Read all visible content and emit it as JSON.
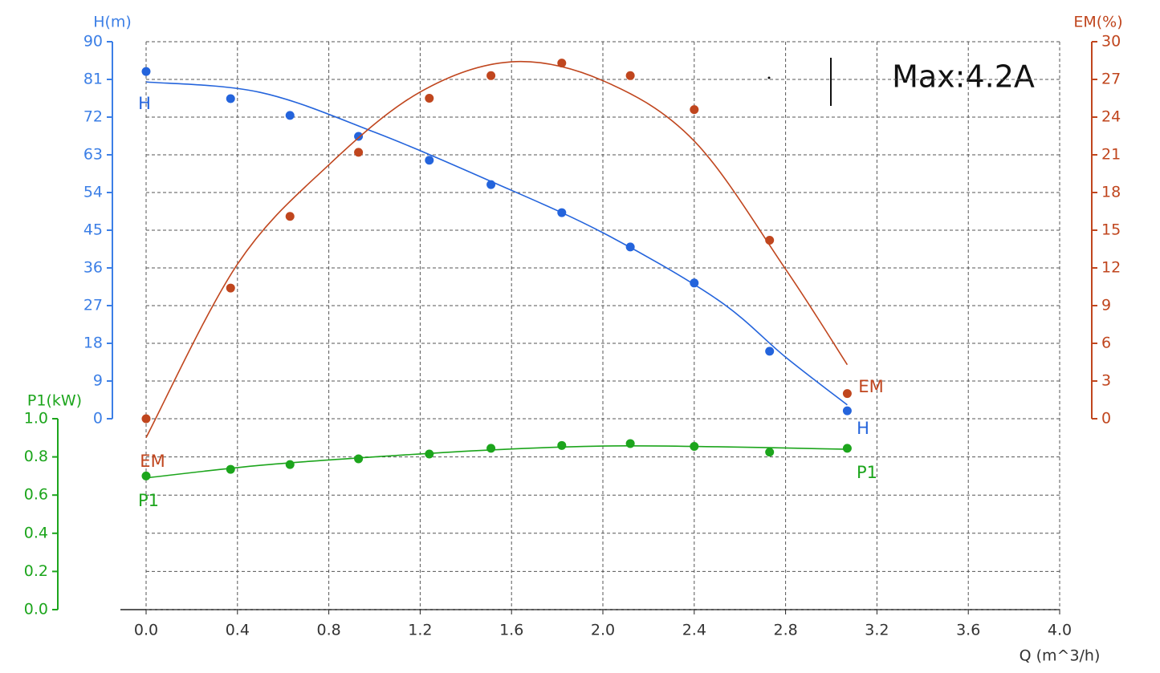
{
  "chart_data": {
    "type": "line",
    "annotation": "Max:4.2A",
    "x_label": "Q (m^3/h)",
    "y_label": "H(m)",
    "y2_label": "EM(%)",
    "y3_label": "P1(kW)",
    "grid": true,
    "xlim": [
      0,
      4.0
    ],
    "xticks": [
      {
        "value": 0,
        "label": "0.0"
      },
      0.4,
      0.8,
      1.2,
      1.6,
      {
        "value": 2,
        "label": "2.0"
      },
      2.4,
      2.8,
      3.2,
      3.6,
      {
        "value": 4,
        "label": "4.0"
      }
    ],
    "ylim": [
      0,
      90
    ],
    "yticks": [
      0,
      9,
      18,
      27,
      36,
      45,
      54,
      63,
      72,
      81,
      90
    ],
    "y2lim": [
      0,
      30
    ],
    "y2ticks": [
      0,
      3,
      6,
      9,
      12,
      15,
      18,
      21,
      24,
      27,
      30
    ],
    "y3lim": [
      0,
      1.0
    ],
    "y3ticks": [
      {
        "value": 0,
        "label": "0.0"
      },
      0.2,
      0.4,
      0.6,
      0.8,
      {
        "value": 1,
        "label": "1.0"
      }
    ],
    "x": [
      0,
      0.37,
      0.63,
      0.93,
      1.24,
      1.51,
      1.82,
      2.12,
      2.4,
      2.73,
      3.07
    ],
    "series": [
      {
        "name": "H",
        "color": "#2464dc",
        "axis": "y",
        "values": [
          82.9,
          76.4,
          72.4,
          67.4,
          61.7,
          55.9,
          49.2,
          41.0,
          32.4,
          16.1,
          1.9
        ],
        "fit_x": [
          0,
          0.5,
          1.0,
          1.5,
          2.0,
          2.5,
          2.8,
          3.07
        ],
        "fit_values": [
          80.4,
          77.9,
          68.4,
          56.9,
          44.4,
          28.5,
          14.7,
          3.3
        ]
      },
      {
        "name": "EM",
        "color": "#c0461e",
        "axis": "y2",
        "values": [
          0,
          10.4,
          16.1,
          21.2,
          25.5,
          27.3,
          28.3,
          27.3,
          24.6,
          14.2,
          2.0
        ],
        "fit_x": [
          0,
          0.4,
          0.8,
          1.2,
          1.6,
          2.0,
          2.4,
          2.8,
          3.07
        ],
        "fit_values": [
          -1.5,
          12.3,
          20.2,
          26.0,
          28.4,
          26.9,
          22.1,
          11.9,
          4.3
        ]
      },
      {
        "name": "P1",
        "color": "#1ca51c",
        "axis": "y3",
        "values": [
          0.7,
          0.735,
          0.76,
          0.79,
          0.815,
          0.845,
          0.86,
          0.87,
          0.855,
          0.825,
          0.845
        ],
        "fit_x": [
          0,
          0.5,
          1.0,
          1.5,
          2.0,
          2.5,
          3.07
        ],
        "fit_values": [
          0.69,
          0.756,
          0.8,
          0.836,
          0.857,
          0.853,
          0.84
        ]
      }
    ]
  }
}
